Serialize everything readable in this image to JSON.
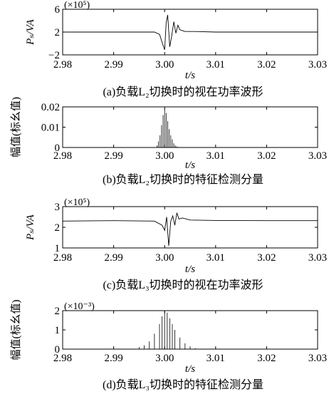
{
  "chart_data": [
    {
      "type": "line",
      "panel_id": "a",
      "caption": "(a)负载L₂切换时的视在功率波形",
      "ylabel": "Pₛ/VA",
      "xlabel": "t/s",
      "multiplier": "(×10⁵)",
      "xlim": [
        2.98,
        3.03
      ],
      "ylim": [
        -2,
        6
      ],
      "xticks": [
        "2.98",
        "2.99",
        "3.00",
        "3.01",
        "3.02",
        "3.03"
      ],
      "yticks": [
        "−2",
        "2",
        "6"
      ],
      "series": [
        {
          "x": [
            2.98,
            2.998,
            2.999,
            2.9995,
            3.0,
            3.0003,
            3.0006,
            3.001,
            3.0014,
            3.0018,
            3.0022,
            3.0026,
            3.003,
            3.004,
            3.006,
            3.01,
            3.02,
            3.03
          ],
          "values": [
            2.0,
            2.0,
            1.6,
            0.2,
            -1.1,
            3.6,
            5.0,
            -0.6,
            1.4,
            3.8,
            1.8,
            3.2,
            2.4,
            2.1,
            2.1,
            2.0,
            2.0,
            2.0
          ]
        }
      ]
    },
    {
      "type": "bar",
      "panel_id": "b",
      "caption": "(b)负载L₂切换时的特征检测分量",
      "ylabel": "幅值(标幺值)",
      "xlabel": "t/s",
      "xlim": [
        2.98,
        3.03
      ],
      "ylim": [
        0,
        0.02
      ],
      "xticks": [
        "2.98",
        "2.99",
        "3.00",
        "3.01",
        "3.02",
        "3.03"
      ],
      "yticks": [
        "0",
        "0.01",
        "0.02"
      ],
      "series": [
        {
          "x": [
            2.9985,
            2.9988,
            2.9991,
            2.9994,
            2.9997,
            3.0,
            3.0003,
            3.0006,
            3.0009,
            3.0012,
            3.0015,
            3.0018,
            3.0021,
            3.0024,
            3.0027
          ],
          "values": [
            0.001,
            0.003,
            0.006,
            0.011,
            0.016,
            0.019,
            0.017,
            0.013,
            0.009,
            0.006,
            0.004,
            0.002,
            0.001,
            0.0005,
            0.0002
          ]
        }
      ]
    },
    {
      "type": "line",
      "panel_id": "c",
      "caption": "(c)负载L₃切换时的视在功率波形",
      "ylabel": "Pₛ/VA",
      "xlabel": "t/s",
      "multiplier": "(×10⁵)",
      "xlim": [
        2.98,
        3.03
      ],
      "ylim": [
        1,
        3
      ],
      "xticks": [
        "2.98",
        "2.99",
        "3.00",
        "3.01",
        "3.02",
        "3.03"
      ],
      "yticks": [
        "1",
        "2",
        "3"
      ],
      "series": [
        {
          "x": [
            2.98,
            2.99,
            2.998,
            2.9995,
            3.0,
            3.0004,
            3.0008,
            3.0012,
            3.0016,
            3.002,
            3.0024,
            3.0028,
            3.0035,
            3.005,
            3.01,
            3.02,
            3.03
          ],
          "values": [
            2.3,
            2.32,
            2.3,
            2.1,
            1.85,
            2.5,
            1.1,
            2.3,
            2.55,
            2.1,
            2.7,
            2.4,
            2.45,
            2.35,
            2.33,
            2.32,
            2.32
          ]
        }
      ]
    },
    {
      "type": "bar",
      "panel_id": "d",
      "caption": "(d)负载L₃切换时的特征检测分量",
      "ylabel": "幅值(标幺值)",
      "xlabel": "t/s",
      "multiplier": "(×10⁻³)",
      "xlim": [
        2.98,
        3.03
      ],
      "ylim": [
        0,
        2
      ],
      "xticks": [
        "2.98",
        "2.99",
        "3.00",
        "3.01",
        "3.02",
        "3.03"
      ],
      "yticks": [
        "0",
        "1",
        "2"
      ],
      "series": [
        {
          "x": [
            2.995,
            2.996,
            2.997,
            2.998,
            2.999,
            2.9995,
            3.0,
            3.0005,
            3.001,
            3.0015,
            3.002,
            3.003,
            3.004,
            3.005,
            3.006
          ],
          "values": [
            0.1,
            0.2,
            0.4,
            0.8,
            1.3,
            1.7,
            2.0,
            1.9,
            1.6,
            1.3,
            1.0,
            0.6,
            0.3,
            0.15,
            0.05
          ]
        }
      ]
    }
  ]
}
